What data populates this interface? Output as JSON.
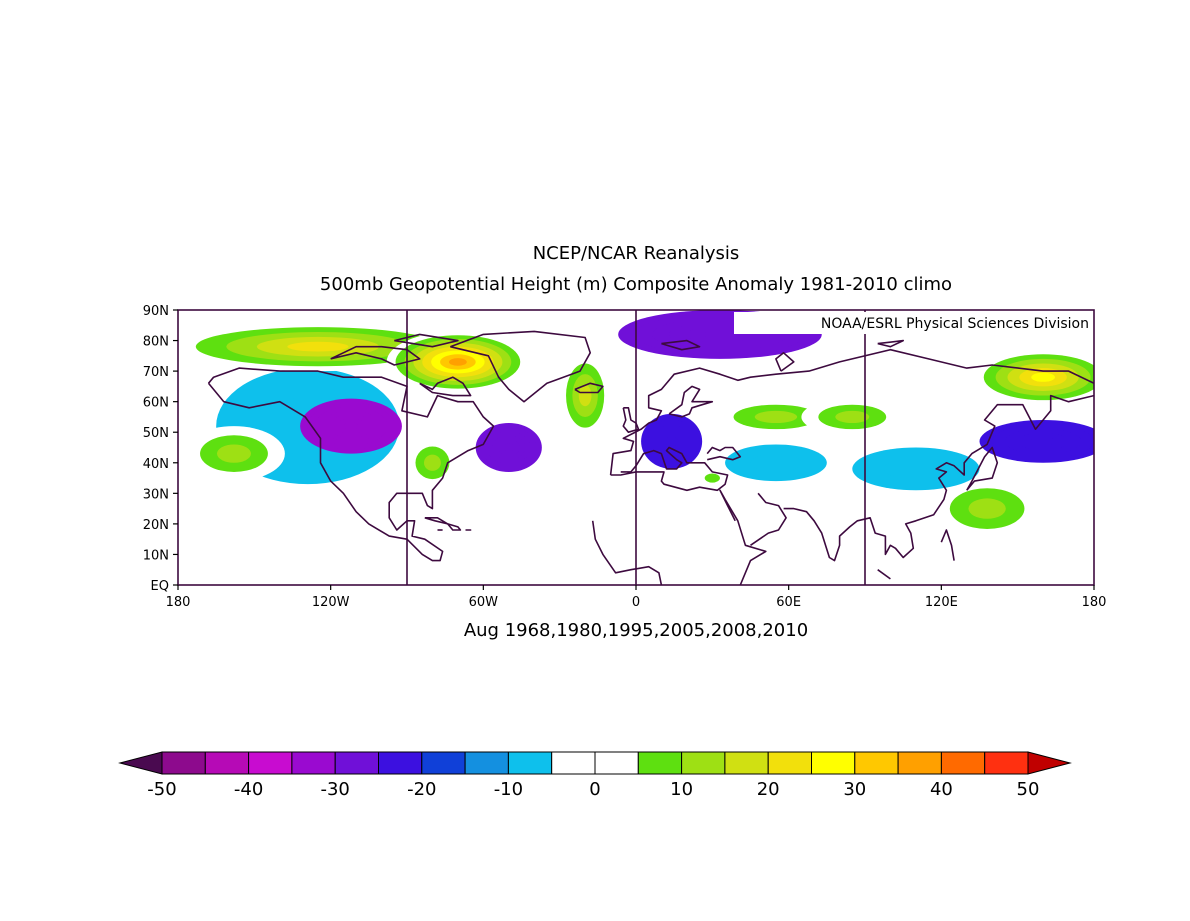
{
  "title": "NCEP/NCAR Reanalysis",
  "subtitle": "500mb Geopotential Height (m) Composite Anomaly 1981-2010 climo",
  "credit": "NOAA/ESRL Physical Sciences Division",
  "caption": "Aug 1968,1980,1995,2005,2008,2010",
  "map": {
    "lon_range": [
      -180,
      180
    ],
    "lat_range": [
      0,
      90
    ],
    "lat_ticks": [
      {
        "value": 90,
        "label": "90N"
      },
      {
        "value": 80,
        "label": "80N"
      },
      {
        "value": 70,
        "label": "70N"
      },
      {
        "value": 60,
        "label": "60N"
      },
      {
        "value": 50,
        "label": "50N"
      },
      {
        "value": 40,
        "label": "40N"
      },
      {
        "value": 30,
        "label": "30N"
      },
      {
        "value": 20,
        "label": "20N"
      },
      {
        "value": 10,
        "label": "10N"
      },
      {
        "value": 0,
        "label": "EQ"
      }
    ],
    "lon_ticks": [
      {
        "value": -180,
        "label": "180"
      },
      {
        "value": -120,
        "label": "120W"
      },
      {
        "value": -60,
        "label": "60W"
      },
      {
        "value": 0,
        "label": "0"
      },
      {
        "value": 60,
        "label": "60E"
      },
      {
        "value": 120,
        "label": "120E"
      },
      {
        "value": 180,
        "label": "180"
      }
    ],
    "reference_meridians": [
      -90,
      0,
      90
    ],
    "outline_color": "#3d0a3f"
  },
  "chart_data": {
    "type": "heatmap",
    "variable": "500mb geopotential height anomaly (m)",
    "anomaly_centers": [
      {
        "lon": -112,
        "lat": 52,
        "value": -35,
        "rx": 20,
        "ry": 9
      },
      {
        "lon": -129,
        "lat": 52,
        "value": -10,
        "rx": 36,
        "ry": 19
      },
      {
        "lon": -50,
        "lat": 45,
        "value": -30,
        "rx": 13,
        "ry": 8
      },
      {
        "lon": 14,
        "lat": 47,
        "value": -25,
        "rx": 12,
        "ry": 9
      },
      {
        "lon": 33,
        "lat": 82,
        "value": -30,
        "rx": 40,
        "ry": 8
      },
      {
        "lon": 55,
        "lat": 40,
        "value": -10,
        "rx": 20,
        "ry": 6
      },
      {
        "lon": 110,
        "lat": 38,
        "value": -10,
        "rx": 25,
        "ry": 7
      },
      {
        "lon": 160,
        "lat": 47,
        "value": -25,
        "rx": 25,
        "ry": 7
      },
      {
        "lon": -70,
        "lat": 73,
        "value": 40,
        "rx": 28,
        "ry": 10
      },
      {
        "lon": -125,
        "lat": 78,
        "value": 25,
        "rx": 60,
        "ry": 8
      },
      {
        "lon": -20,
        "lat": 62,
        "value": 20,
        "rx": 10,
        "ry": 14
      },
      {
        "lon": 160,
        "lat": 68,
        "value": 30,
        "rx": 28,
        "ry": 9
      },
      {
        "lon": -158,
        "lat": 43,
        "value": 15,
        "rx": 20,
        "ry": 9
      },
      {
        "lon": -80,
        "lat": 40,
        "value": 15,
        "rx": 10,
        "ry": 8
      },
      {
        "lon": 55,
        "lat": 55,
        "value": 12,
        "rx": 25,
        "ry": 6
      },
      {
        "lon": 85,
        "lat": 55,
        "value": 15,
        "rx": 20,
        "ry": 6
      },
      {
        "lon": 138,
        "lat": 25,
        "value": 12,
        "rx": 22,
        "ry": 10
      },
      {
        "lon": 30,
        "lat": 35,
        "value": 10,
        "rx": 6,
        "ry": 3
      }
    ],
    "colorbar": {
      "levels": [
        -50,
        -45,
        -40,
        -35,
        -30,
        -25,
        -20,
        -15,
        -10,
        -5,
        0,
        5,
        10,
        15,
        20,
        25,
        30,
        35,
        40,
        45,
        50
      ],
      "colors": [
        "#8d0a8d",
        "#b60ab6",
        "#c80cd0",
        "#9a0ad0",
        "#7010d8",
        "#3c10e0",
        "#1040d8",
        "#1490e0",
        "#0ec0ec",
        "#ffffff",
        "#ffffff",
        "#5ee010",
        "#9ee014",
        "#d0e012",
        "#f2e00c",
        "#ffff00",
        "#ffc800",
        "#ffa000",
        "#ff6a00",
        "#ff3010"
      ],
      "under_color": "#4a0a50",
      "over_color": "#c00000",
      "tick_labels": [
        {
          "value": -50,
          "label": "-50"
        },
        {
          "value": -40,
          "label": "-40"
        },
        {
          "value": -30,
          "label": "-30"
        },
        {
          "value": -20,
          "label": "-20"
        },
        {
          "value": -10,
          "label": "-10"
        },
        {
          "value": 0,
          "label": "0"
        },
        {
          "value": 10,
          "label": "10"
        },
        {
          "value": 20,
          "label": "20"
        },
        {
          "value": 30,
          "label": "30"
        },
        {
          "value": 40,
          "label": "40"
        },
        {
          "value": 50,
          "label": "50"
        }
      ]
    }
  }
}
